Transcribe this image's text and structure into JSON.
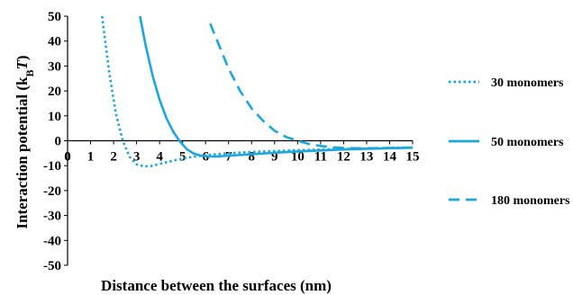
{
  "chart_data": {
    "type": "line",
    "xlabel": "Distance between the surfaces (nm)",
    "ylabel": {
      "prefix": "Interaction potential (k",
      "sub": "B",
      "italic": "T",
      "suffix": ")"
    },
    "xlim": [
      0,
      15
    ],
    "ylim": [
      -50,
      50
    ],
    "xticks": [
      0,
      1,
      2,
      3,
      4,
      5,
      6,
      7,
      8,
      9,
      10,
      11,
      12,
      13,
      14,
      15
    ],
    "yticks": [
      50,
      40,
      30,
      20,
      10,
      0,
      -10,
      -20,
      -30,
      -40,
      -50
    ],
    "legend_position": "right",
    "grid": false,
    "series": [
      {
        "name": "30 monomers",
        "style": "dotted",
        "color": "#1aa7e0",
        "x": [
          1.5,
          1.8,
          2.1,
          2.4,
          2.7,
          3.0,
          3.3,
          3.6,
          4.0,
          4.5,
          5.0,
          5.5,
          6.0,
          7.0,
          8.0,
          9.0,
          10.0,
          11.0,
          12.0,
          13.0,
          14.0,
          15.0
        ],
        "y": [
          50,
          28,
          11,
          0,
          -6.5,
          -9.5,
          -10.3,
          -10.2,
          -9.3,
          -8.2,
          -7.2,
          -6.4,
          -5.8,
          -5.0,
          -4.5,
          -4.1,
          -3.8,
          -3.5,
          -3.3,
          -3.1,
          -2.9,
          -2.7
        ]
      },
      {
        "name": "50 monomers",
        "style": "solid",
        "color": "#1aa7e0",
        "x": [
          3.15,
          3.4,
          3.7,
          4.0,
          4.3,
          4.6,
          4.9,
          5.2,
          5.5,
          5.8,
          6.1,
          6.5,
          7.0,
          8.0,
          9.0,
          10.0,
          11.0,
          12.0,
          13.0,
          14.0,
          15.0
        ],
        "y": [
          50,
          38,
          26,
          16.5,
          9,
          3.5,
          -0.5,
          -3.5,
          -5.2,
          -6.0,
          -6.3,
          -6.3,
          -6.0,
          -5.4,
          -4.8,
          -4.3,
          -3.9,
          -3.5,
          -3.2,
          -3.0,
          -2.8
        ]
      },
      {
        "name": "180 monomers",
        "style": "dashed",
        "color": "#1aa7e0",
        "x": [
          6.2,
          6.6,
          7.0,
          7.5,
          8.0,
          8.5,
          9.0,
          9.5,
          10.0,
          10.5,
          11.0,
          11.5,
          12.0,
          12.5,
          13.0,
          14.0,
          15.0
        ],
        "y": [
          47,
          38,
          29,
          20,
          13,
          8,
          4,
          1.5,
          0,
          -1.3,
          -2.1,
          -2.6,
          -2.9,
          -3.0,
          -3.0,
          -2.9,
          -2.7
        ]
      }
    ]
  }
}
